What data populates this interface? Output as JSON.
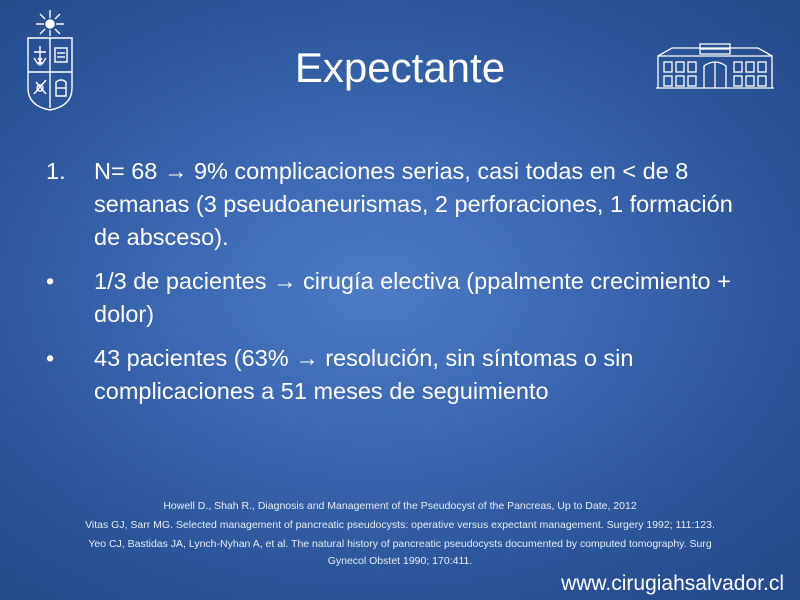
{
  "slide": {
    "title": "Expectante",
    "items": [
      {
        "marker": "1.",
        "lead": "N= 68",
        "arrow": "→",
        "rest": "9% complicaciones serias, casi todas en < de 8 semanas (3 pseudoaneurismas, 2 perforaciones, 1 formación de absceso)."
      },
      {
        "marker": "•",
        "lead": "1/3 de pacientes",
        "arrow": "→",
        "rest": "cirugía electiva (ppalmente crecimiento + dolor)"
      },
      {
        "marker": "•",
        "lead": "43 pacientes (63%",
        "arrow": "→",
        "rest": "resolución, sin síntomas o sin complicaciones a 51 meses de seguimiento"
      }
    ],
    "references": [
      "Howell D., Shah R., Diagnosis and Management of the Pseudocyst of the Pancreas, Up to Date, 2012",
      "Vitas GJ, Sarr MG. Selected management of pancreatic pseudocysts: operative versus expectant management. Surgery 1992; 111:123.",
      "Yeo CJ, Bastidas JA, Lynch-Nyhan A, et al. The natural history of pancreatic pseudocysts documented by computed tomography. Surg Gynecol Obstet 1990; 170:411."
    ],
    "website": "www.cirugiahsalvador.cl"
  },
  "icons": {
    "left_logo": "university-crest-icon",
    "right_logo": "hospital-building-icon"
  },
  "colors": {
    "background_center": "#4d7cc6",
    "background_edge": "#24498a",
    "text": "#ffffff"
  }
}
